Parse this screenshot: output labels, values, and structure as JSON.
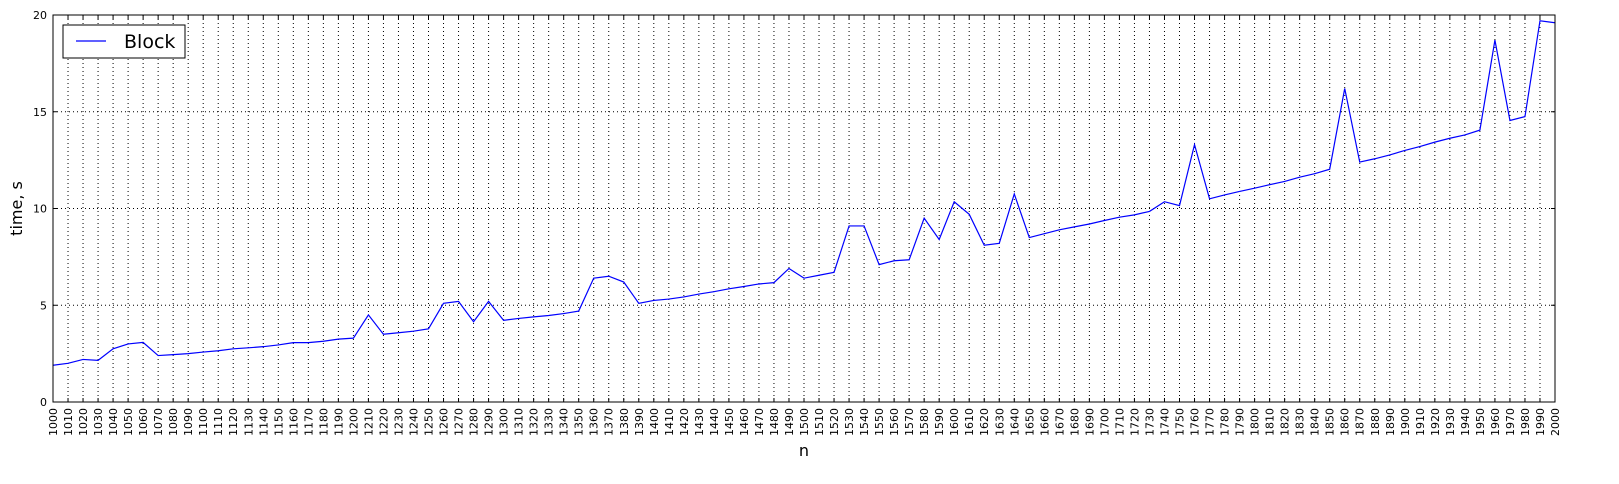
{
  "chart_data": {
    "type": "line",
    "title": "",
    "xlabel": "n",
    "ylabel": "time, s",
    "xlim": [
      1000,
      2000
    ],
    "ylim": [
      0,
      20
    ],
    "yticks": [
      0,
      5,
      10,
      15,
      20
    ],
    "xtick_step": 10,
    "grid": true,
    "legend_position": "top-left",
    "line_color": "#0000ff",
    "x": [
      1000,
      1010,
      1020,
      1030,
      1040,
      1050,
      1060,
      1070,
      1080,
      1090,
      1100,
      1110,
      1120,
      1130,
      1140,
      1150,
      1160,
      1170,
      1180,
      1190,
      1200,
      1210,
      1220,
      1230,
      1240,
      1250,
      1260,
      1270,
      1280,
      1290,
      1300,
      1310,
      1320,
      1330,
      1340,
      1350,
      1360,
      1370,
      1380,
      1390,
      1400,
      1410,
      1420,
      1430,
      1440,
      1450,
      1460,
      1470,
      1480,
      1490,
      1500,
      1510,
      1520,
      1530,
      1540,
      1550,
      1560,
      1570,
      1580,
      1590,
      1600,
      1610,
      1620,
      1630,
      1640,
      1650,
      1660,
      1670,
      1680,
      1690,
      1700,
      1710,
      1720,
      1730,
      1740,
      1750,
      1760,
      1770,
      1780,
      1790,
      1800,
      1810,
      1820,
      1830,
      1840,
      1850,
      1860,
      1870,
      1880,
      1890,
      1900,
      1910,
      1920,
      1930,
      1940,
      1950,
      1960,
      1970,
      1980,
      1990,
      2000
    ],
    "series": [
      {
        "name": "Block",
        "values": [
          1.9,
          2.0,
          2.2,
          2.15,
          2.75,
          3.0,
          3.08,
          2.4,
          2.45,
          2.5,
          2.58,
          2.65,
          2.75,
          2.8,
          2.86,
          2.95,
          3.07,
          3.07,
          3.14,
          3.25,
          3.3,
          4.5,
          3.5,
          3.58,
          3.66,
          3.78,
          5.1,
          5.2,
          4.15,
          5.2,
          4.22,
          4.32,
          4.4,
          4.47,
          4.57,
          4.7,
          6.4,
          6.5,
          6.2,
          5.1,
          5.25,
          5.32,
          5.43,
          5.58,
          5.7,
          5.85,
          5.97,
          6.1,
          6.17,
          6.9,
          6.4,
          6.55,
          6.7,
          9.1,
          9.1,
          7.1,
          7.3,
          7.35,
          9.5,
          8.4,
          10.35,
          9.7,
          8.1,
          8.2,
          10.75,
          8.5,
          8.7,
          8.9,
          9.05,
          9.2,
          9.38,
          9.55,
          9.67,
          9.85,
          10.35,
          10.15,
          13.3,
          10.5,
          10.7,
          10.88,
          11.05,
          11.23,
          11.4,
          11.62,
          11.8,
          12.03,
          16.2,
          12.4,
          12.57,
          12.77,
          13.0,
          13.2,
          13.43,
          13.63,
          13.8,
          14.05,
          18.7,
          14.55,
          14.75,
          19.7,
          19.6
        ]
      }
    ]
  }
}
